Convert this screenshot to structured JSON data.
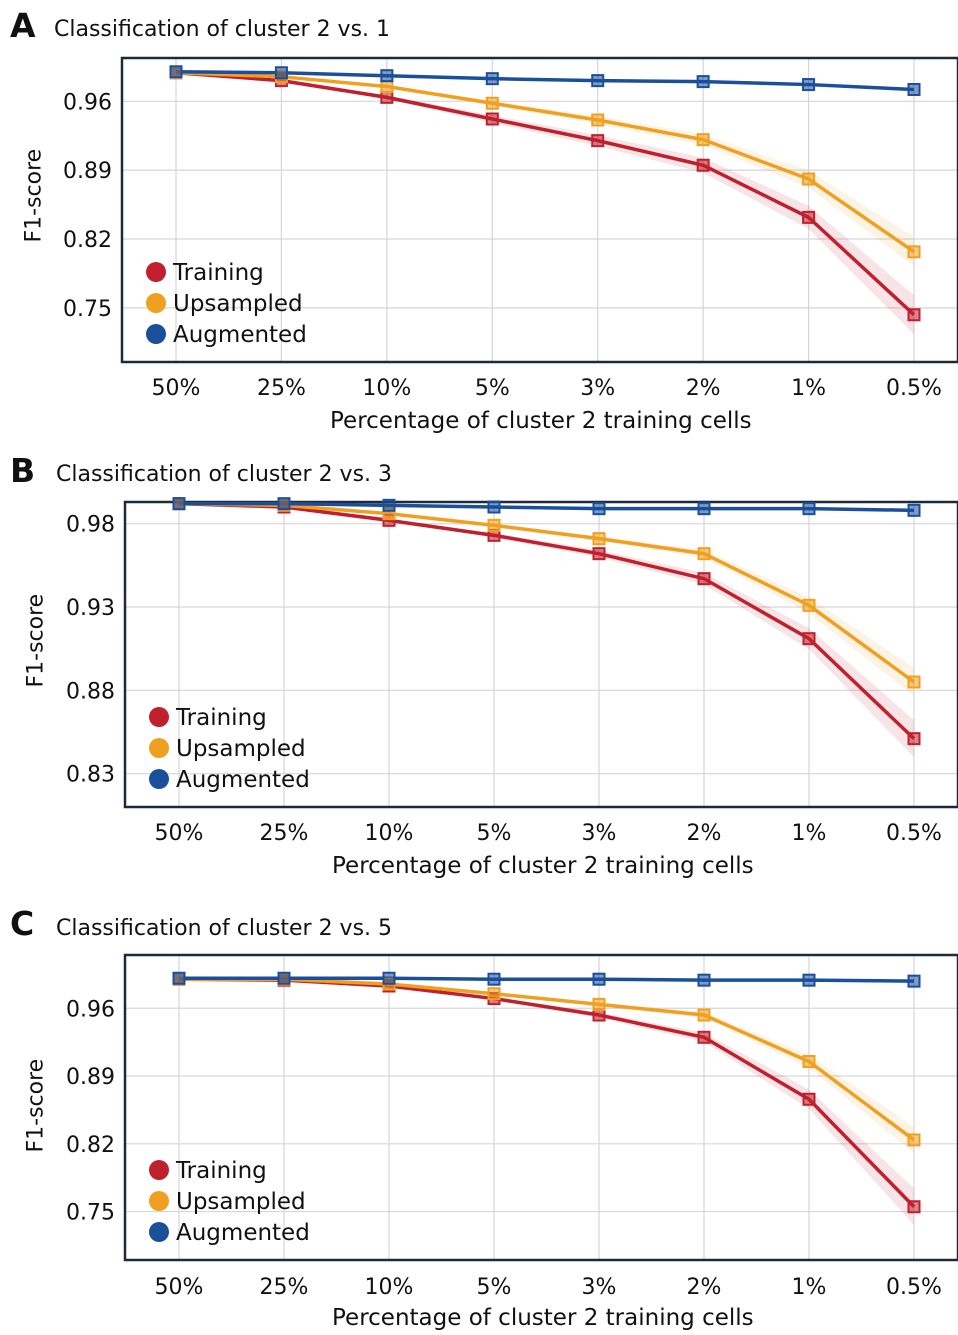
{
  "colors": {
    "training": "#c0202e",
    "upsampled": "#f0a020",
    "augmented": "#1a4f9c",
    "grid": "#d6d6d6",
    "frame": "#1e2a3a"
  },
  "chart_data": [
    {
      "panel": "A",
      "type": "line",
      "title": "Classification of cluster 2 vs. 1",
      "xlabel": "Percentage of cluster 2 training cells",
      "ylabel": "F1-score",
      "categories": [
        "50%",
        "25%",
        "10%",
        "5%",
        "3%",
        "2%",
        "1%",
        "0.5%"
      ],
      "yticks": [
        "0.96",
        "0.89",
        "0.82",
        "0.75"
      ],
      "ylim": [
        0.695,
        1.004
      ],
      "grid": true,
      "legend_position": "bottom-left",
      "series": [
        {
          "name": "Training",
          "color": "#c0202e",
          "values": [
            0.989,
            0.981,
            0.964,
            0.942,
            0.92,
            0.895,
            0.842,
            0.743
          ]
        },
        {
          "name": "Upsampled",
          "color": "#f0a020",
          "values": [
            0.989,
            0.985,
            0.975,
            0.958,
            0.941,
            0.921,
            0.881,
            0.807
          ]
        },
        {
          "name": "Augmented",
          "color": "#1a4f9c",
          "values": [
            0.99,
            0.989,
            0.986,
            0.983,
            0.981,
            0.98,
            0.977,
            0.972
          ]
        }
      ]
    },
    {
      "panel": "B",
      "type": "line",
      "title": "Classification of cluster 2 vs. 3",
      "xlabel": "Percentage of cluster 2 training cells",
      "ylabel": "F1-score",
      "categories": [
        "50%",
        "25%",
        "10%",
        "5%",
        "3%",
        "2%",
        "1%",
        "0.5%"
      ],
      "yticks": [
        "0.98",
        "0.93",
        "0.88",
        "0.83"
      ],
      "ylim": [
        0.81,
        0.993
      ],
      "grid": true,
      "legend_position": "bottom-left",
      "series": [
        {
          "name": "Training",
          "color": "#c0202e",
          "values": [
            0.992,
            0.99,
            0.982,
            0.973,
            0.962,
            0.947,
            0.911,
            0.851
          ]
        },
        {
          "name": "Upsampled",
          "color": "#f0a020",
          "values": [
            0.992,
            0.991,
            0.986,
            0.979,
            0.971,
            0.962,
            0.931,
            0.885
          ]
        },
        {
          "name": "Augmented",
          "color": "#1a4f9c",
          "values": [
            0.992,
            0.992,
            0.991,
            0.99,
            0.989,
            0.989,
            0.989,
            0.988
          ]
        }
      ]
    },
    {
      "panel": "C",
      "type": "line",
      "title": "Classification of cluster 2 vs. 5",
      "xlabel": "Percentage of cluster 2 training cells",
      "ylabel": "F1-score",
      "categories": [
        "50%",
        "25%",
        "10%",
        "5%",
        "3%",
        "2%",
        "1%",
        "0.5%"
      ],
      "yticks": [
        "0.96",
        "0.89",
        "0.82",
        "0.75"
      ],
      "ylim": [
        0.7,
        1.015
      ],
      "grid": true,
      "legend_position": "bottom-left",
      "series": [
        {
          "name": "Training",
          "color": "#c0202e",
          "values": [
            0.99,
            0.989,
            0.983,
            0.97,
            0.953,
            0.93,
            0.866,
            0.755
          ]
        },
        {
          "name": "Upsampled",
          "color": "#f0a020",
          "values": [
            0.99,
            0.99,
            0.985,
            0.975,
            0.964,
            0.953,
            0.905,
            0.824
          ]
        },
        {
          "name": "Augmented",
          "color": "#1a4f9c",
          "values": [
            0.991,
            0.991,
            0.991,
            0.99,
            0.99,
            0.989,
            0.989,
            0.988
          ]
        }
      ]
    }
  ]
}
